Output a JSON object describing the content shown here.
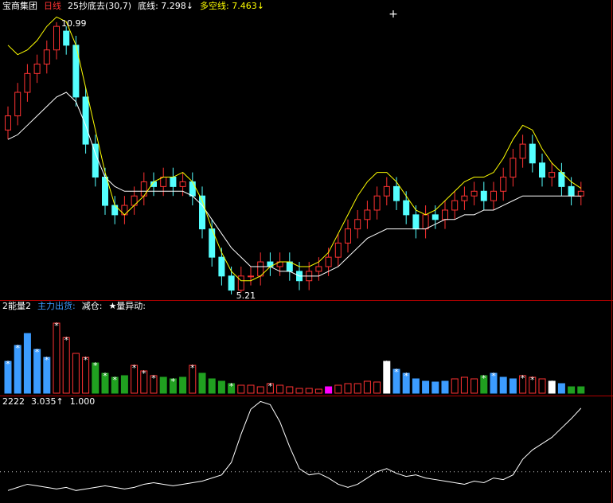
{
  "chart_data": [
    {
      "type": "candlestick",
      "header": [
        {
          "text": "宝商集团",
          "color": "#ffffff"
        },
        {
          "text": "日线",
          "color": "#ff3232"
        },
        {
          "text": "25抄底去(30,7)",
          "color": "#ffffff"
        }
      ],
      "open": [
        8.7,
        9.0,
        9.5,
        9.9,
        10.1,
        10.4,
        10.8,
        10.5,
        9.4,
        8.4,
        7.7,
        7.1,
        6.9,
        7.1,
        7.3,
        7.6,
        7.5,
        7.7,
        7.5,
        7.6,
        7.3,
        6.6,
        6.0,
        5.6,
        5.3,
        5.6,
        5.6,
        5.9,
        5.8,
        5.9,
        5.7,
        5.5,
        5.7,
        5.8,
        6.0,
        6.3,
        6.6,
        6.8,
        7.0,
        7.3,
        7.5,
        7.2,
        6.9,
        6.6,
        6.9,
        6.8,
        7.0,
        7.2,
        7.3,
        7.4,
        7.2,
        7.4,
        7.7,
        8.1,
        8.4,
        8.0,
        7.7,
        7.8,
        7.5,
        7.3
      ],
      "high": [
        9.2,
        9.7,
        10.1,
        10.3,
        10.6,
        10.99,
        10.9,
        10.7,
        9.6,
        8.6,
        7.9,
        7.3,
        7.3,
        7.5,
        7.8,
        7.8,
        7.9,
        7.9,
        7.8,
        7.8,
        7.5,
        6.8,
        6.2,
        5.8,
        5.8,
        5.8,
        6.1,
        6.1,
        6.1,
        6.1,
        5.9,
        5.9,
        6.0,
        6.2,
        6.5,
        6.8,
        7.0,
        7.2,
        7.5,
        7.7,
        7.7,
        7.4,
        7.1,
        7.1,
        7.1,
        7.2,
        7.4,
        7.5,
        7.6,
        7.6,
        7.6,
        7.9,
        8.3,
        8.6,
        8.6,
        8.2,
        8.0,
        8.0,
        7.7,
        7.6
      ],
      "low": [
        8.5,
        8.8,
        9.3,
        9.7,
        9.9,
        10.2,
        10.3,
        9.2,
        8.2,
        7.5,
        6.9,
        6.7,
        6.7,
        6.9,
        7.1,
        7.3,
        7.3,
        7.3,
        7.3,
        7.1,
        6.4,
        5.8,
        5.4,
        5.21,
        5.25,
        5.4,
        5.4,
        5.6,
        5.6,
        5.5,
        5.3,
        5.3,
        5.5,
        5.6,
        5.8,
        6.1,
        6.4,
        6.6,
        6.8,
        7.1,
        7.0,
        6.7,
        6.4,
        6.4,
        6.6,
        6.6,
        6.8,
        7.0,
        7.1,
        7.0,
        7.0,
        7.2,
        7.5,
        7.9,
        7.8,
        7.5,
        7.5,
        7.3,
        7.1,
        7.1
      ],
      "close": [
        9.0,
        9.5,
        9.9,
        10.1,
        10.4,
        10.9,
        10.5,
        9.4,
        8.4,
        7.7,
        7.1,
        6.9,
        7.1,
        7.3,
        7.6,
        7.5,
        7.7,
        7.5,
        7.6,
        7.3,
        6.6,
        6.0,
        5.6,
        5.3,
        5.6,
        5.6,
        5.9,
        5.8,
        5.9,
        5.7,
        5.5,
        5.7,
        5.8,
        6.0,
        6.3,
        6.6,
        6.8,
        7.0,
        7.3,
        7.5,
        7.2,
        6.9,
        6.6,
        6.9,
        6.8,
        7.0,
        7.2,
        7.3,
        7.4,
        7.2,
        7.4,
        7.7,
        8.1,
        8.4,
        8.0,
        7.7,
        7.8,
        7.5,
        7.3,
        7.4
      ],
      "up_color": "#ff3232",
      "down_color": "#54ffff",
      "annotations": [
        "10.99",
        "5.21"
      ],
      "series": [
        {
          "name": "底线: 7.298↓",
          "color": "#ffffff",
          "values": [
            8.5,
            8.6,
            8.8,
            9.0,
            9.2,
            9.4,
            9.5,
            9.3,
            8.8,
            8.2,
            7.7,
            7.5,
            7.4,
            7.4,
            7.4,
            7.4,
            7.4,
            7.4,
            7.4,
            7.3,
            7.1,
            6.8,
            6.5,
            6.2,
            6.0,
            5.8,
            5.8,
            5.8,
            5.7,
            5.7,
            5.6,
            5.6,
            5.6,
            5.7,
            5.8,
            6.0,
            6.2,
            6.4,
            6.5,
            6.6,
            6.6,
            6.6,
            6.6,
            6.6,
            6.7,
            6.8,
            6.8,
            6.9,
            6.9,
            7.0,
            7.0,
            7.1,
            7.2,
            7.3,
            7.3,
            7.3,
            7.3,
            7.3,
            7.3,
            7.298
          ]
        },
        {
          "name": "多空线: 7.463↓",
          "color": "#ffff00",
          "values": [
            10.5,
            10.3,
            10.4,
            10.6,
            10.9,
            11.1,
            11.0,
            10.5,
            9.6,
            8.7,
            7.8,
            7.1,
            6.9,
            7.1,
            7.3,
            7.6,
            7.7,
            7.7,
            7.8,
            7.6,
            7.2,
            6.6,
            6.1,
            5.7,
            5.5,
            5.5,
            5.6,
            5.8,
            5.9,
            5.9,
            5.8,
            5.8,
            5.9,
            6.1,
            6.5,
            6.9,
            7.3,
            7.6,
            7.8,
            7.8,
            7.6,
            7.3,
            7.0,
            6.9,
            7.0,
            7.2,
            7.4,
            7.6,
            7.7,
            7.7,
            7.8,
            8.1,
            8.5,
            8.8,
            8.7,
            8.3,
            8.0,
            7.8,
            7.6,
            7.463
          ]
        }
      ],
      "ylim": [
        5.09,
        11.46
      ]
    },
    {
      "type": "bar",
      "header": [
        {
          "text": "2能量2",
          "color": "#ffffff"
        },
        {
          "text": "主力出货:",
          "color": "#3c9cff"
        },
        {
          "text": "减仓:",
          "color": "#ffffff"
        },
        {
          "text": "★量异动:",
          "color": "#ffffff"
        }
      ],
      "values": [
        40,
        60,
        75,
        55,
        45,
        88,
        70,
        50,
        45,
        38,
        25,
        20,
        22,
        35,
        28,
        22,
        20,
        18,
        20,
        35,
        25,
        18,
        15,
        12,
        10,
        10,
        8,
        12,
        10,
        8,
        6,
        6,
        5,
        8,
        10,
        12,
        12,
        15,
        14,
        40,
        30,
        25,
        18,
        15,
        14,
        15,
        18,
        20,
        18,
        22,
        25,
        20,
        18,
        22,
        20,
        18,
        15,
        12,
        8,
        8
      ],
      "colors": [
        "#3c9cff",
        "#3c9cff",
        "#3c9cff",
        "#3c9cff",
        "#3c9cff",
        "#ff3232",
        "#ff3232",
        "#ff3232",
        "#ff3232",
        "#20a020",
        "#20a020",
        "#20a020",
        "#20a020",
        "#ff3232",
        "#ff3232",
        "#ff3232",
        "#20a020",
        "#20a020",
        "#20a020",
        "#ff3232",
        "#20a020",
        "#20a020",
        "#20a020",
        "#20a020",
        "#ff3232",
        "#ff3232",
        "#ff3232",
        "#ff3232",
        "#ff3232",
        "#ff3232",
        "#ff3232",
        "#ff3232",
        "#ff3232",
        "#ff00ff",
        "#ff3232",
        "#ff3232",
        "#ff3232",
        "#ff3232",
        "#ff3232",
        "#ffffff",
        "#3c9cff",
        "#3c9cff",
        "#3c9cff",
        "#3c9cff",
        "#3c9cff",
        "#3c9cff",
        "#ff3232",
        "#ff3232",
        "#ff3232",
        "#20a020",
        "#3c9cff",
        "#3c9cff",
        "#3c9cff",
        "#ff3232",
        "#ff3232",
        "#ff3232",
        "#ffffff",
        "#3c9cff",
        "#20a020",
        "#20a020"
      ],
      "hollow_color": "#ff3232",
      "star": [
        true,
        true,
        false,
        true,
        true,
        true,
        true,
        false,
        true,
        true,
        true,
        true,
        false,
        true,
        true,
        true,
        false,
        true,
        false,
        true,
        false,
        false,
        false,
        true,
        false,
        false,
        false,
        true,
        false,
        false,
        false,
        false,
        false,
        false,
        false,
        false,
        false,
        false,
        false,
        true,
        true,
        true,
        false,
        false,
        false,
        false,
        false,
        false,
        false,
        true,
        true,
        false,
        false,
        true,
        true,
        false,
        true,
        false,
        false,
        false
      ],
      "star_symbol": "*",
      "ylim": [
        0,
        100
      ]
    },
    {
      "type": "line",
      "header": [
        {
          "text": "2222",
          "color": "#ffffff"
        },
        {
          "text": "3.035↑",
          "color": "#ffffff"
        }
      ],
      "reference": {
        "value": 1,
        "label": "1.000"
      },
      "color": "#ffffff",
      "values": [
        0.4,
        0.5,
        0.6,
        0.55,
        0.5,
        0.45,
        0.5,
        0.4,
        0.45,
        0.5,
        0.55,
        0.5,
        0.45,
        0.5,
        0.6,
        0.65,
        0.6,
        0.55,
        0.6,
        0.65,
        0.7,
        0.8,
        0.9,
        1.3,
        2.2,
        3.0,
        3.25,
        3.15,
        2.6,
        1.8,
        1.1,
        0.9,
        0.95,
        0.8,
        0.6,
        0.5,
        0.6,
        0.8,
        1.0,
        1.1,
        0.95,
        0.85,
        0.9,
        0.8,
        0.75,
        0.7,
        0.65,
        0.6,
        0.7,
        0.65,
        0.8,
        0.75,
        0.9,
        1.4,
        1.7,
        1.9,
        2.1,
        2.4,
        2.7,
        3.035
      ],
      "ylim": [
        0,
        3.44
      ]
    }
  ]
}
